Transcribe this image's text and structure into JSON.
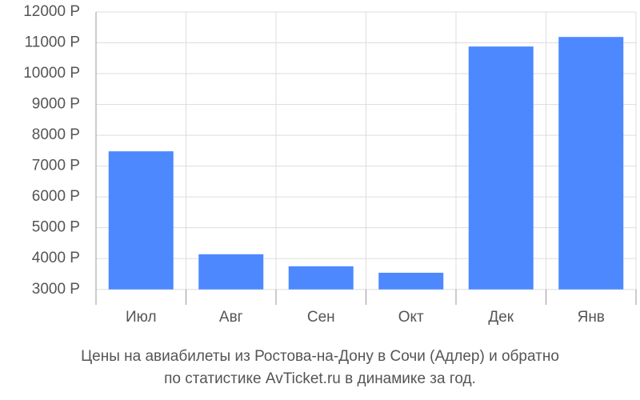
{
  "chart_data": {
    "type": "bar",
    "title": [
      "Цены на авиабилеты из Ростова-на-Дону в Сочи (Адлер) и обратно",
      "по статистике AvTicket.ru в динамике за год."
    ],
    "categories": [
      "Июл",
      "Авг",
      "Сен",
      "Окт",
      "Дек",
      "Янв"
    ],
    "values": [
      7480,
      4140,
      3750,
      3540,
      10880,
      11190
    ],
    "color": "#4d88ff",
    "ylim": [
      2500,
      12000
    ],
    "yticks": [
      {
        "value": 3000,
        "label": "3000 Р"
      },
      {
        "value": 4000,
        "label": "4000 Р"
      },
      {
        "value": 5000,
        "label": "5000 Р"
      },
      {
        "value": 6000,
        "label": "6000 Р"
      },
      {
        "value": 7000,
        "label": "7000 Р"
      },
      {
        "value": 8000,
        "label": "8000 Р"
      },
      {
        "value": 9000,
        "label": "9000 Р"
      },
      {
        "value": 10000,
        "label": "10000 Р"
      },
      {
        "value": 11000,
        "label": "11000 Р"
      },
      {
        "value": 12000,
        "label": "12000 Р"
      }
    ],
    "grid": true
  }
}
